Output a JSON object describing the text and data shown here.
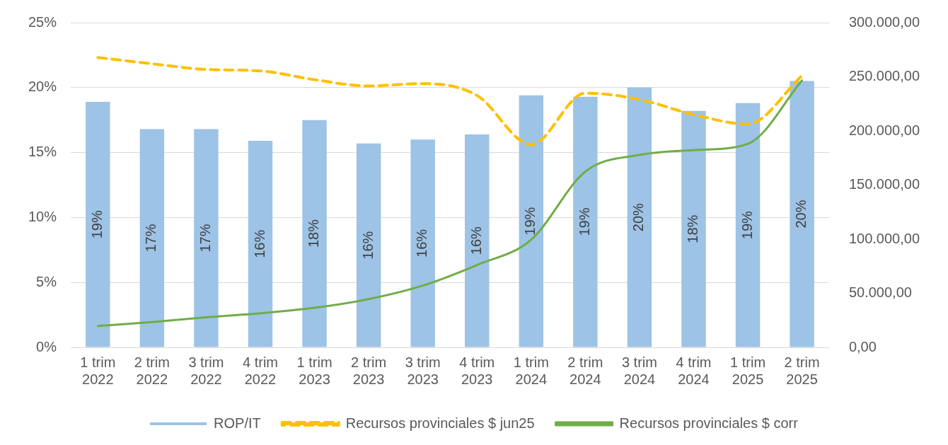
{
  "chart_data": {
    "type": "bar",
    "categories": [
      "1 trim 2022",
      "2 trim 2022",
      "3 trim 2022",
      "4 trim 2022",
      "1 trim 2023",
      "2 trim 2023",
      "3 trim 2023",
      "4 trim 2023",
      "1 trim 2024",
      "2 trim 2024",
      "3 trim 2024",
      "4 trim 2024",
      "1 trim 2025",
      "2 trim 2025"
    ],
    "series": [
      {
        "name": "ROP/IT",
        "color": "#9dc3e6",
        "values": [
          18.9,
          16.8,
          16.8,
          15.9,
          17.5,
          15.7,
          16.0,
          16.4,
          19.4,
          19.3,
          20.0,
          18.2,
          18.8,
          20.5
        ],
        "value_labels": [
          "19%",
          "17%",
          "17%",
          "16%",
          "18%",
          "16%",
          "16%",
          "16%",
          "19%",
          "19%",
          "20%",
          "18%",
          "19%",
          "20%"
        ]
      },
      {
        "name": "Recursos provinciales $ jun25",
        "type": "line",
        "axis": "y2",
        "line_style": "dashed",
        "color": "#ffc000",
        "values": [
          267800,
          262000,
          256800,
          255400,
          247300,
          241500,
          243700,
          232700,
          187300,
          234900,
          229000,
          215100,
          206300,
          251000
        ]
      },
      {
        "name": "Recursos provinciales $ corr",
        "type": "line",
        "axis": "y2",
        "line_style": "solid",
        "color": "#70ad47",
        "values": [
          19800,
          23400,
          27800,
          31500,
          36600,
          44600,
          57100,
          76100,
          99500,
          162400,
          177800,
          182200,
          188000,
          246600
        ]
      }
    ],
    "ylim": [
      0,
      25
    ],
    "yticks": [
      {
        "value": 0,
        "label": "0%"
      },
      {
        "value": 5,
        "label": "5%"
      },
      {
        "value": 10,
        "label": "10%"
      },
      {
        "value": 15,
        "label": "15%"
      },
      {
        "value": 20,
        "label": "20%"
      },
      {
        "value": 25,
        "label": "25%"
      }
    ],
    "y2lim": [
      0,
      300000
    ],
    "y2ticks": [
      {
        "value": 0,
        "label": "0,00"
      },
      {
        "value": 50000,
        "label": "50.000,00"
      },
      {
        "value": 100000,
        "label": "100.000,00"
      },
      {
        "value": 150000,
        "label": "150.000,00"
      },
      {
        "value": 200000,
        "label": "200.000,00"
      },
      {
        "value": 250000,
        "label": "250.000,00"
      },
      {
        "value": 300000,
        "label": "300.000,00"
      }
    ],
    "grid": "y",
    "legend": "bottom",
    "marker": "none"
  }
}
